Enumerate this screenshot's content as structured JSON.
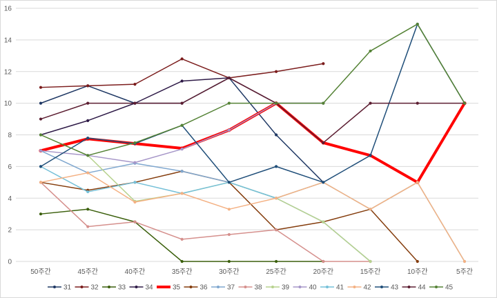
{
  "chart_data": {
    "type": "line",
    "title": "",
    "xlabel": "",
    "ylabel": "",
    "ylim": [
      0,
      16
    ],
    "yticks": [
      0,
      2,
      4,
      6,
      8,
      10,
      12,
      14,
      16
    ],
    "grid": true,
    "legend_position": "bottom",
    "categories": [
      "50주간",
      "45주간",
      "40주간",
      "35주간",
      "30주간",
      "25주간",
      "20주간",
      "15주간",
      "10주간",
      "5주간"
    ],
    "series": [
      {
        "name": "31",
        "color": "#1f3864",
        "width": 1.5,
        "values": [
          10,
          11.1,
          10,
          10,
          11.6,
          8,
          5,
          null,
          null,
          null
        ]
      },
      {
        "name": "32",
        "color": "#7b1c1c",
        "width": 1.5,
        "values": [
          11,
          11.1,
          11.2,
          12.8,
          11.6,
          12,
          12.5,
          null,
          null,
          null
        ]
      },
      {
        "name": "33",
        "color": "#3a5f0b",
        "width": 1.5,
        "values": [
          3,
          3.3,
          2.5,
          0,
          0,
          0,
          0,
          null,
          null,
          null
        ]
      },
      {
        "name": "34",
        "color": "#2e1a47",
        "width": 1.5,
        "values": [
          8,
          8.9,
          10,
          11.4,
          11.6,
          10,
          10,
          null,
          null,
          null
        ]
      },
      {
        "name": "35",
        "color": "#ff0000",
        "width": 4,
        "values": [
          7,
          7.75,
          7.45,
          7.15,
          8.3,
          10,
          7.5,
          6.7,
          5,
          10
        ]
      },
      {
        "name": "36",
        "color": "#843c0c",
        "width": 1.5,
        "values": [
          5,
          4.5,
          5,
          5.7,
          5,
          2,
          2.5,
          3.3,
          0,
          null
        ]
      },
      {
        "name": "37",
        "color": "#7fa7cf",
        "width": 1.5,
        "values": [
          7,
          5.6,
          6.2,
          5.7,
          5,
          4,
          2.5,
          0,
          null,
          null
        ]
      },
      {
        "name": "38",
        "color": "#d58f8c",
        "width": 1.5,
        "values": [
          5,
          2.2,
          2.5,
          1.4,
          1.7,
          2,
          0,
          0,
          null,
          null
        ]
      },
      {
        "name": "39",
        "color": "#b7d28e",
        "width": 1.5,
        "values": [
          8,
          6.7,
          3.8,
          4.3,
          5,
          4,
          2.5,
          0,
          null,
          null
        ]
      },
      {
        "name": "40",
        "color": "#a696c8",
        "width": 1.5,
        "values": [
          7,
          6.7,
          6.25,
          7.1,
          8.3,
          10,
          10,
          null,
          null,
          null
        ]
      },
      {
        "name": "41",
        "color": "#75c0d8",
        "width": 1.5,
        "values": [
          6,
          4.4,
          5,
          4.3,
          5,
          4,
          5,
          3.3,
          5,
          0
        ]
      },
      {
        "name": "42",
        "color": "#f4b183",
        "width": 1.5,
        "values": [
          5,
          5.6,
          3.75,
          4.3,
          3.3,
          4,
          5,
          3.3,
          5,
          0
        ]
      },
      {
        "name": "43",
        "color": "#1f4e79",
        "width": 1.5,
        "values": [
          6,
          7.8,
          7.45,
          8.6,
          5,
          6,
          5,
          6.7,
          15,
          10
        ]
      },
      {
        "name": "44",
        "color": "#5c1e32",
        "width": 1.5,
        "values": [
          9,
          10,
          10,
          10,
          11.6,
          10,
          7.5,
          10,
          10,
          10
        ]
      },
      {
        "name": "45",
        "color": "#548235",
        "width": 1.5,
        "values": [
          8,
          6.7,
          7.5,
          8.6,
          10,
          10,
          10,
          13.3,
          15,
          10
        ]
      }
    ]
  }
}
